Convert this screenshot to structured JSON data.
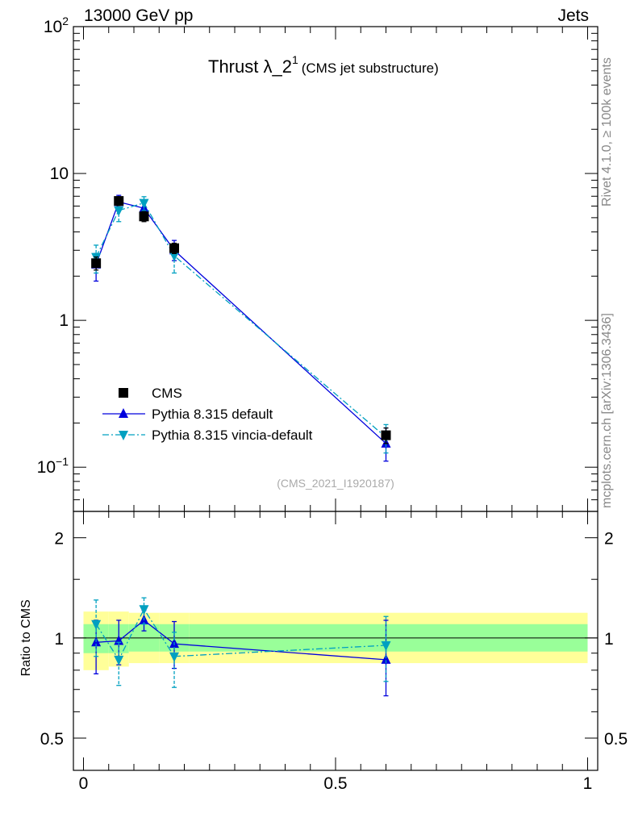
{
  "header": {
    "energy": "13000 GeV pp",
    "category": "Jets"
  },
  "side_labels": {
    "rivet": "Rivet 4.1.0, ≥ 100k events",
    "source": "mcplots.cern.ch [arXiv:1306.3436]"
  },
  "chart_data": [
    {
      "type": "line",
      "scale": "log",
      "title": "Thrust λ_2¹",
      "title_main": "Thrust λ_2",
      "title_sup": "1",
      "subtitle": "(CMS jet substructure)",
      "analysis_id": "(CMS_2021_I1920187)",
      "ylim": [
        0.05,
        100
      ],
      "yticks": [
        {
          "value": 100,
          "base": "10",
          "exp": "2"
        },
        {
          "value": 10,
          "base": "10",
          "exp": ""
        },
        {
          "value": 1,
          "base": "1",
          "exp": ""
        },
        {
          "value": 0.1,
          "base": "10",
          "exp": "−1"
        }
      ],
      "xlim": [
        -0.02,
        1.02
      ],
      "legend_position": "bottom-left",
      "series": [
        {
          "name": "CMS",
          "color": "#000000",
          "marker": "square",
          "line": "none",
          "x": [
            0.025,
            0.07,
            0.12,
            0.18,
            0.6
          ],
          "y": [
            2.45,
            6.5,
            5.1,
            3.1,
            0.165
          ],
          "err_up": [
            0.25,
            0.45,
            0.4,
            0.25,
            0.02
          ],
          "err_dn": [
            0.25,
            0.45,
            0.4,
            0.25,
            0.02
          ]
        },
        {
          "name": "Pythia 8.315 default",
          "color": "#0000dd",
          "marker": "triangle-up",
          "line": "solid",
          "x": [
            0.025,
            0.07,
            0.12,
            0.18,
            0.6
          ],
          "y": [
            2.4,
            6.4,
            5.8,
            3.0,
            0.145
          ],
          "err_up": [
            0.45,
            0.7,
            0.55,
            0.5,
            0.04
          ],
          "err_dn": [
            0.55,
            0.6,
            0.5,
            0.45,
            0.035
          ]
        },
        {
          "name": "Pythia 8.315 vincia-default",
          "color": "#00a0c0",
          "marker": "triangle-down",
          "line": "dashdot",
          "x": [
            0.025,
            0.07,
            0.12,
            0.18,
            0.6
          ],
          "y": [
            2.7,
            5.6,
            6.3,
            2.75,
            0.16
          ],
          "err_up": [
            0.55,
            0.6,
            0.65,
            0.5,
            0.035
          ],
          "err_dn": [
            0.6,
            0.9,
            0.7,
            0.65,
            0.035
          ]
        }
      ]
    },
    {
      "type": "line",
      "scale": "log",
      "ylabel": "Ratio to CMS",
      "ylim": [
        0.4,
        2.4
      ],
      "yticks": [
        {
          "value": 2,
          "label": "2"
        },
        {
          "value": 1,
          "label": "1"
        },
        {
          "value": 0.5,
          "label": "0.5"
        }
      ],
      "xlim": [
        -0.02,
        1.02
      ],
      "xticks": [
        {
          "value": 0,
          "label": "0"
        },
        {
          "value": 0.5,
          "label": "0.5"
        },
        {
          "value": 1,
          "label": "1"
        }
      ],
      "bands": {
        "inner_color": "#99ff99",
        "outer_color": "#ffff99",
        "bins": [
          {
            "x0": 0.0,
            "x1": 0.05,
            "inner": [
              0.9,
              1.1
            ],
            "outer": [
              0.8,
              1.2
            ]
          },
          {
            "x0": 0.05,
            "x1": 0.09,
            "inner": [
              0.9,
              1.1
            ],
            "outer": [
              0.82,
              1.2
            ]
          },
          {
            "x0": 0.09,
            "x1": 0.15,
            "inner": [
              0.91,
              1.1
            ],
            "outer": [
              0.84,
              1.19
            ]
          },
          {
            "x0": 0.15,
            "x1": 0.21,
            "inner": [
              0.91,
              1.1
            ],
            "outer": [
              0.84,
              1.19
            ]
          },
          {
            "x0": 0.21,
            "x1": 1.0,
            "inner": [
              0.91,
              1.1
            ],
            "outer": [
              0.84,
              1.19
            ]
          }
        ]
      },
      "series": [
        {
          "name": "Pythia 8.315 default",
          "color": "#0000dd",
          "marker": "triangle-up",
          "line": "solid",
          "x": [
            0.025,
            0.07,
            0.12,
            0.18,
            0.6
          ],
          "y": [
            0.97,
            0.98,
            1.13,
            0.96,
            0.86
          ],
          "err_up": [
            0.16,
            0.15,
            0.08,
            0.16,
            0.27
          ],
          "err_dn": [
            0.19,
            0.15,
            0.08,
            0.15,
            0.19
          ]
        },
        {
          "name": "Pythia 8.315 vincia-default",
          "color": "#00a0c0",
          "marker": "triangle-down",
          "line": "dashdot",
          "x": [
            0.025,
            0.07,
            0.12,
            0.18,
            0.6
          ],
          "y": [
            1.1,
            0.86,
            1.22,
            0.88,
            0.95
          ],
          "err_up": [
            0.2,
            0.11,
            0.1,
            0.16,
            0.21
          ],
          "err_dn": [
            0.22,
            0.14,
            0.12,
            0.17,
            0.21
          ]
        }
      ]
    }
  ]
}
